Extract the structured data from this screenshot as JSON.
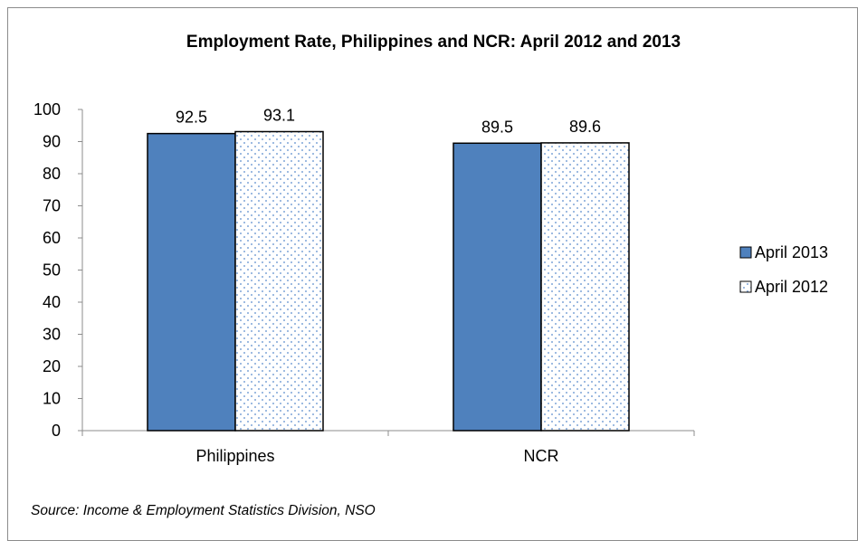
{
  "chart_data": {
    "type": "bar",
    "title": "Employment Rate, Philippines and NCR: April 2012 and 2013",
    "categories": [
      "Philippines",
      "NCR"
    ],
    "series": [
      {
        "name": "April 2013",
        "values": [
          92.5,
          89.5
        ],
        "color": "#4f81bd",
        "pattern": "solid"
      },
      {
        "name": "April 2012",
        "values": [
          93.1,
          89.6
        ],
        "color": "#ffffff",
        "pattern": "dotted-blue"
      }
    ],
    "data_labels": true,
    "ylim": [
      0,
      100
    ],
    "yticks": [
      0,
      10,
      20,
      30,
      40,
      50,
      60,
      70,
      80,
      90,
      100
    ],
    "xlabel": "",
    "ylabel": "",
    "grid": false,
    "legend_position": "right"
  },
  "source_note": "Source: Income & Employment Statistics Division, NSO"
}
